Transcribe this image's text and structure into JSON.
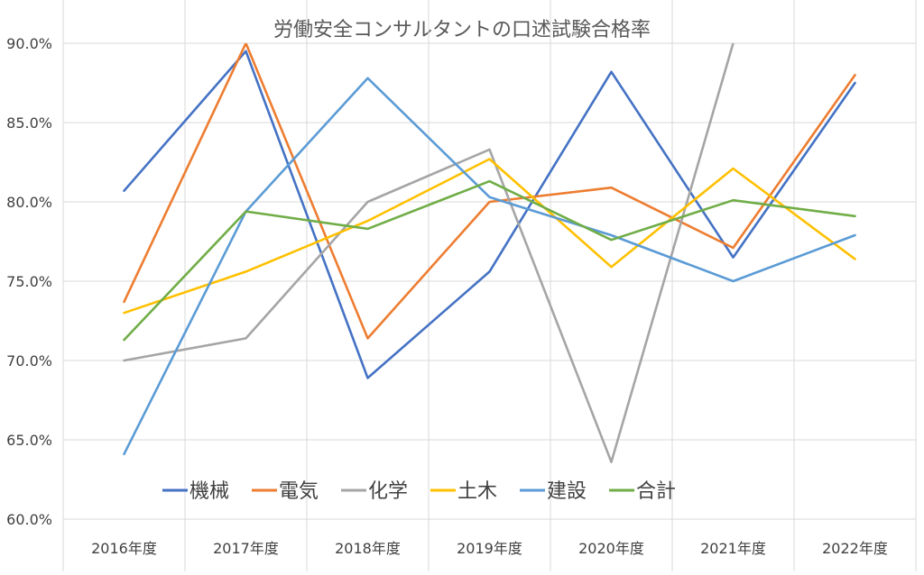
{
  "chart_data": {
    "type": "line",
    "title": "労働安全コンサルタントの口述試験合格率",
    "xlabel": "",
    "ylabel": "",
    "categories": [
      "2016年度",
      "2017年度",
      "2018年度",
      "2019年度",
      "2020年度",
      "2021年度",
      "2022年度"
    ],
    "ylim": [
      60.0,
      90.0
    ],
    "yticks": [
      "60.0%",
      "65.0%",
      "70.0%",
      "75.0%",
      "80.0%",
      "85.0%",
      "90.0%"
    ],
    "grid": true,
    "legend_position": "bottom-left inside plot",
    "series": [
      {
        "name": "機械",
        "color": "#4472C4",
        "values": [
          80.7,
          89.5,
          68.9,
          75.6,
          88.2,
          76.5,
          87.5
        ]
      },
      {
        "name": "電気",
        "color": "#ED7D31",
        "values": [
          73.7,
          90.0,
          71.4,
          80.0,
          80.9,
          77.1,
          88.0
        ]
      },
      {
        "name": "化学",
        "color": "#A5A5A5",
        "values": [
          70.0,
          71.4,
          80.0,
          83.3,
          63.6,
          90.0,
          null
        ]
      },
      {
        "name": "土木",
        "color": "#FFC000",
        "values": [
          73.0,
          75.6,
          78.8,
          82.7,
          75.9,
          82.1,
          76.4
        ]
      },
      {
        "name": "建設",
        "color": "#5B9BD5",
        "values": [
          64.1,
          79.4,
          87.8,
          80.3,
          77.9,
          75.0,
          77.9
        ]
      },
      {
        "name": "合計",
        "color": "#70AD47",
        "values": [
          71.3,
          79.4,
          78.3,
          81.3,
          77.6,
          80.1,
          79.1
        ]
      }
    ]
  }
}
